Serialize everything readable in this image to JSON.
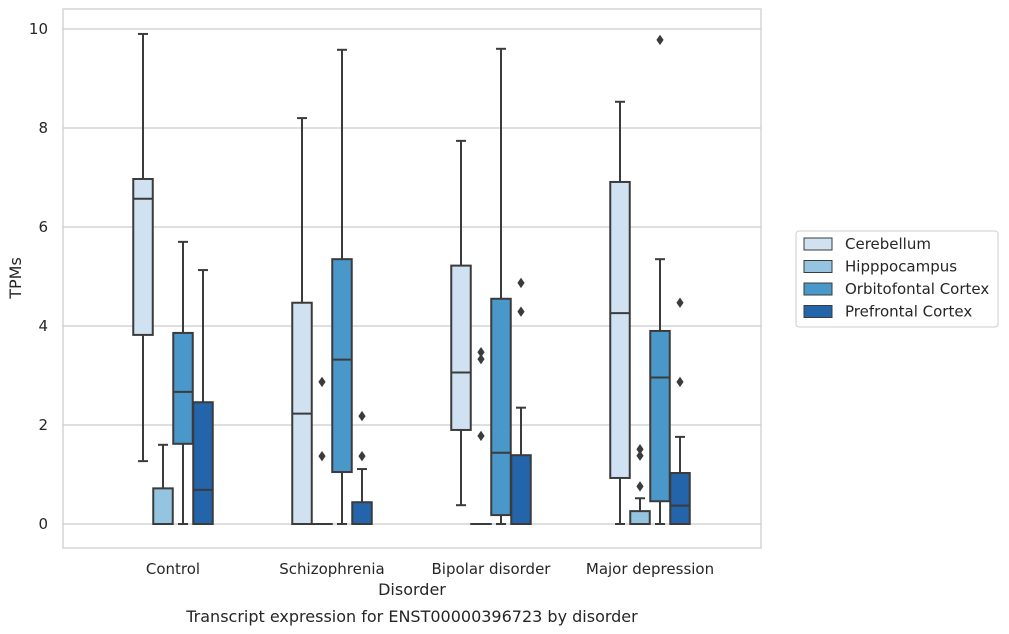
{
  "chart_data": {
    "type": "box",
    "title": "",
    "caption": "Transcript expression for ENST00000396723 by disorder",
    "xlabel": "Disorder",
    "ylabel": "TPMs",
    "ylim": [
      -0.5,
      10.4
    ],
    "yticks": [
      0,
      2,
      4,
      6,
      8,
      10
    ],
    "grid": "horizontal",
    "legend_position": "right",
    "categories": [
      "Control",
      "Schizophrenia",
      "Bipolar disorder",
      "Major depression"
    ],
    "series": [
      {
        "name": "Cerebellum",
        "color": "#d0e1f2",
        "boxes": [
          {
            "whisker_low": 1.27,
            "q1": 3.82,
            "median": 6.57,
            "q3": 6.97,
            "whisker_high": 9.9,
            "outliers": []
          },
          {
            "whisker_low": 0,
            "q1": 0,
            "median": 2.23,
            "q3": 4.47,
            "whisker_high": 8.2,
            "outliers": []
          },
          {
            "whisker_low": 0.38,
            "q1": 1.9,
            "median": 3.06,
            "q3": 5.22,
            "whisker_high": 7.74,
            "outliers": []
          },
          {
            "whisker_low": 0,
            "q1": 0.93,
            "median": 4.26,
            "q3": 6.91,
            "whisker_high": 8.53,
            "outliers": []
          }
        ]
      },
      {
        "name": "Hipppocampus",
        "color": "#94c4df",
        "boxes": [
          {
            "whisker_low": 0,
            "q1": 0,
            "median": 0,
            "q3": 0.72,
            "whisker_high": 1.6,
            "outliers": []
          },
          {
            "whisker_low": 0,
            "q1": 0,
            "median": 0,
            "q3": 0,
            "whisker_high": 0,
            "outliers": [
              1.37,
              2.87
            ]
          },
          {
            "whisker_low": 0,
            "q1": 0,
            "median": 0,
            "q3": 0,
            "whisker_high": 0,
            "outliers": [
              1.78,
              3.33,
              3.47
            ]
          },
          {
            "whisker_low": 0,
            "q1": 0,
            "median": 0,
            "q3": 0.26,
            "whisker_high": 0.52,
            "outliers": [
              0.76,
              1.38,
              1.51
            ]
          }
        ]
      },
      {
        "name": "Orbitofontal Cortex",
        "color": "#4a98c9",
        "boxes": [
          {
            "whisker_low": 0,
            "q1": 1.62,
            "median": 2.67,
            "q3": 3.86,
            "whisker_high": 5.7,
            "outliers": []
          },
          {
            "whisker_low": 0,
            "q1": 1.05,
            "median": 3.32,
            "q3": 5.35,
            "whisker_high": 9.58,
            "outliers": []
          },
          {
            "whisker_low": 0,
            "q1": 0.18,
            "median": 1.44,
            "q3": 4.55,
            "whisker_high": 9.6,
            "outliers": []
          },
          {
            "whisker_low": 0,
            "q1": 0.46,
            "median": 2.96,
            "q3": 3.9,
            "whisker_high": 5.35,
            "outliers": [
              9.78
            ]
          }
        ]
      },
      {
        "name": "Prefrontal Cortex",
        "color": "#2364aa",
        "boxes": [
          {
            "whisker_low": 0,
            "q1": 0,
            "median": 0.69,
            "q3": 2.46,
            "whisker_high": 5.13,
            "outliers": []
          },
          {
            "whisker_low": 0,
            "q1": 0,
            "median": 0,
            "q3": 0.44,
            "whisker_high": 1.11,
            "outliers": [
              1.37,
              2.18
            ]
          },
          {
            "whisker_low": 0,
            "q1": 0,
            "median": 0,
            "q3": 1.39,
            "whisker_high": 2.35,
            "outliers": [
              4.29,
              4.87
            ]
          },
          {
            "whisker_low": 0,
            "q1": 0,
            "median": 0.37,
            "q3": 1.03,
            "whisker_high": 1.76,
            "outliers": [
              2.87,
              4.47
            ]
          }
        ]
      }
    ]
  }
}
